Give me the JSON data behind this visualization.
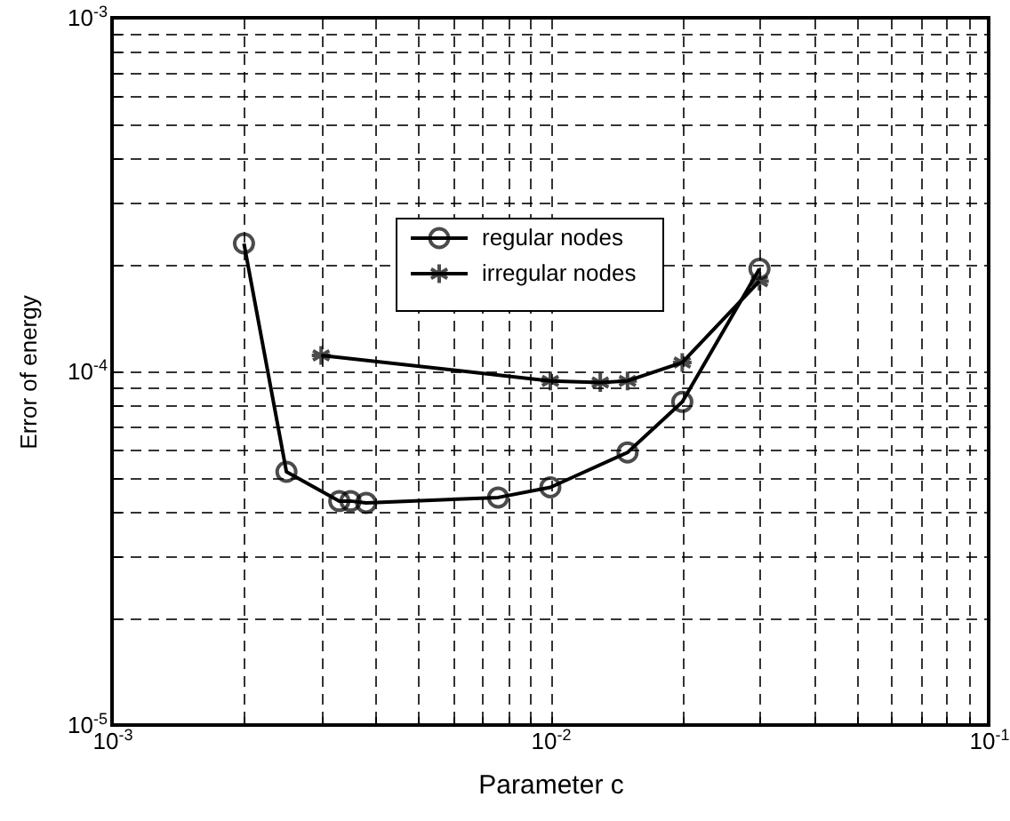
{
  "chart_data": {
    "type": "line",
    "xlabel": "Parameter c",
    "ylabel": "Error of energy",
    "log": "xy",
    "grid": true,
    "legend": "top",
    "line_style": "solid",
    "xlim": [
      0.001,
      0.1
    ],
    "ylim": [
      1e-05,
      0.001
    ],
    "xticks": [
      {
        "value": 0.001,
        "label": "10$^{-3}$"
      },
      {
        "value": 0.002,
        "label": null
      },
      {
        "value": 0.003,
        "label": null
      },
      {
        "value": 0.004,
        "label": null
      },
      {
        "value": 0.005,
        "label": null
      },
      {
        "value": 0.006,
        "label": null
      },
      {
        "value": 0.007,
        "label": null
      },
      {
        "value": 0.008,
        "label": null
      },
      {
        "value": 0.009,
        "label": null
      },
      {
        "value": 0.01,
        "label": "10$^{-2}$"
      },
      {
        "value": 0.02,
        "label": null
      },
      {
        "value": 0.03,
        "label": null
      },
      {
        "value": 0.04,
        "label": null
      },
      {
        "value": 0.05,
        "label": null
      },
      {
        "value": 0.06,
        "label": null
      },
      {
        "value": 0.07,
        "label": null
      },
      {
        "value": 0.08,
        "label": null
      },
      {
        "value": 0.09,
        "label": null
      },
      {
        "value": 0.1,
        "label": "10$^{-1}$"
      }
    ],
    "yticks": [
      {
        "value": 1e-05,
        "label": "10$^{-5}$"
      },
      {
        "value": 2e-05,
        "label": null
      },
      {
        "value": 3e-05,
        "label": null
      },
      {
        "value": 4e-05,
        "label": null
      },
      {
        "value": 5e-05,
        "label": null
      },
      {
        "value": 6e-05,
        "label": null
      },
      {
        "value": 7e-05,
        "label": null
      },
      {
        "value": 8e-05,
        "label": null
      },
      {
        "value": 9e-05,
        "label": null
      },
      {
        "value": 0.0001,
        "label": "10$^{-4}$"
      },
      {
        "value": 0.0002,
        "label": null
      },
      {
        "value": 0.0003,
        "label": null
      },
      {
        "value": 0.0004,
        "label": null
      },
      {
        "value": 0.0005,
        "label": null
      },
      {
        "value": 0.0006,
        "label": null
      },
      {
        "value": 0.0007,
        "label": null
      },
      {
        "value": 0.0008,
        "label": null
      },
      {
        "value": 0.0009,
        "label": null
      },
      {
        "value": 0.001,
        "label": "10$^{-3}$"
      }
    ],
    "series": [
      {
        "name": "regular nodes",
        "color": "#000000",
        "marker": "circle",
        "x": [
          0.002,
          0.0025,
          0.0033,
          0.0035,
          0.0038,
          0.0076,
          0.01,
          0.015,
          0.02,
          0.03
        ],
        "values": [
          0.00023,
          5.2e-05,
          4.3e-05,
          4.3e-05,
          4.25e-05,
          4.4e-05,
          4.7e-05,
          5.9e-05,
          8.2e-05,
          0.000195
        ]
      },
      {
        "name": "irregular nodes",
        "color": "#000000",
        "marker": "cross",
        "x": [
          0.003,
          0.01,
          0.013,
          0.015,
          0.02,
          0.03
        ],
        "values": [
          0.000111,
          9.4e-05,
          9.3e-05,
          9.4e-05,
          0.000106,
          0.00018
        ]
      }
    ]
  }
}
